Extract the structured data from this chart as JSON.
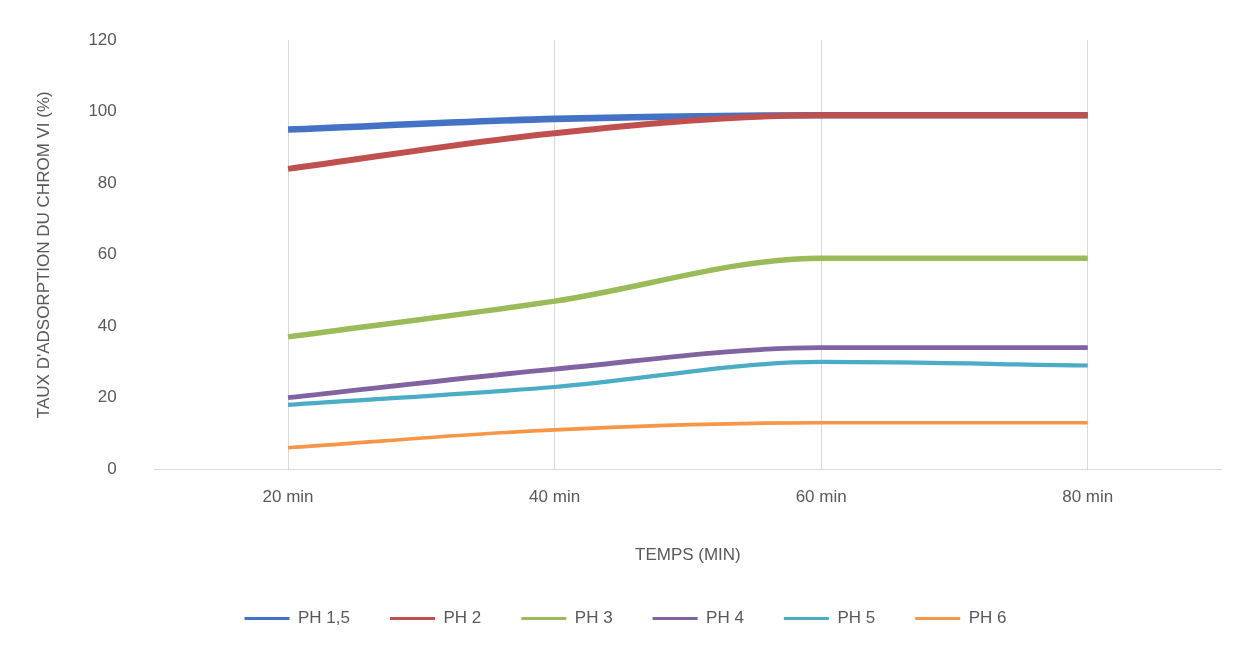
{
  "chart_data": {
    "type": "line",
    "xlabel": "TEMPS (MIN)",
    "ylabel": "TAUX D'ADSORPTION DU CHROM VI (%)",
    "categories": [
      "20 min",
      "40 min",
      "60 min",
      "80 min"
    ],
    "series": [
      {
        "name": "PH 1,5",
        "color": "#4472c4",
        "values": [
          95,
          98,
          99,
          99
        ]
      },
      {
        "name": "PH 2",
        "color": "#c0504d",
        "values": [
          84,
          94,
          99,
          99
        ]
      },
      {
        "name": "PH 3",
        "color": "#9bbb59",
        "values": [
          37,
          47,
          59,
          59
        ]
      },
      {
        "name": "PH 4",
        "color": "#8064a2",
        "values": [
          20,
          28,
          34,
          34
        ]
      },
      {
        "name": "PH 5",
        "color": "#4bacc6",
        "values": [
          18,
          23,
          30,
          29
        ]
      },
      {
        "name": "PH 6",
        "color": "#f79646",
        "values": [
          6,
          11,
          13,
          13
        ]
      }
    ],
    "ylim": [
      0,
      120
    ],
    "yticks": [
      0,
      20,
      40,
      60,
      80,
      100,
      120
    ],
    "grid": "x",
    "legend": "bottom",
    "marker": "none",
    "line_style": "solid"
  }
}
